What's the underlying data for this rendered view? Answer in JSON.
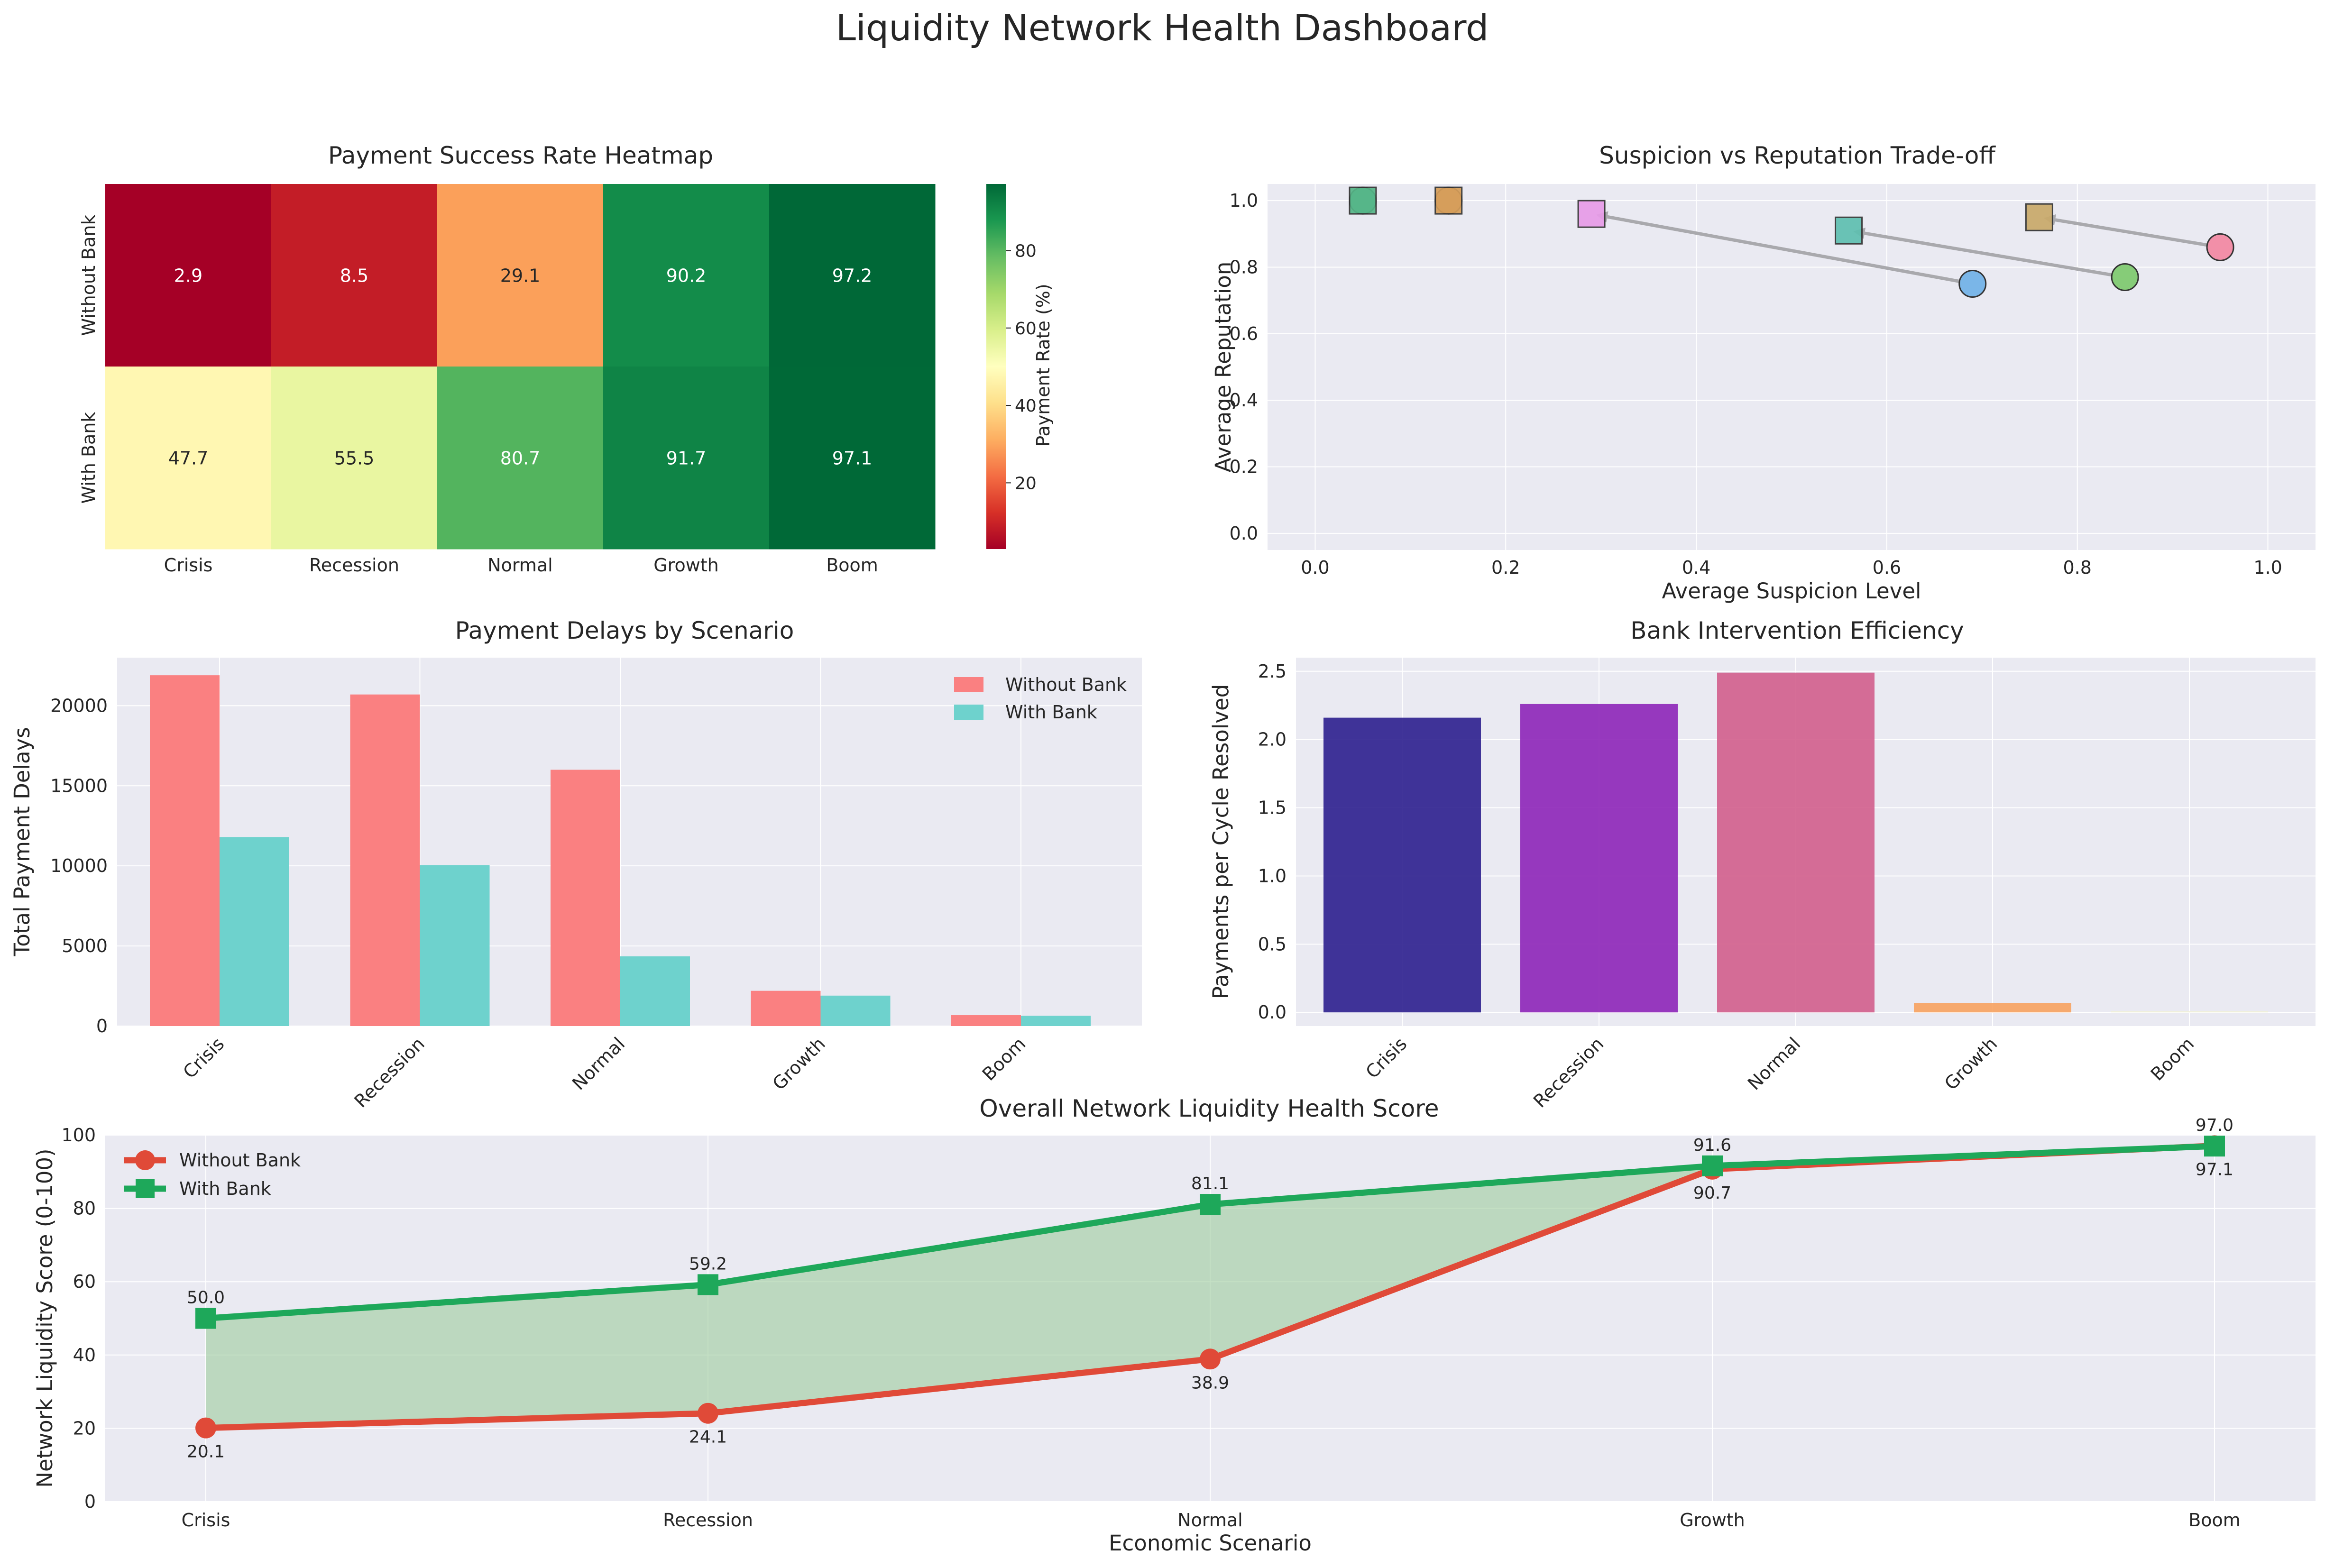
{
  "title": "Liquidity Network Health Dashboard",
  "chart_data": [
    {
      "type": "heatmap",
      "title": "Payment Success Rate Heatmap",
      "columns": [
        "Crisis",
        "Recession",
        "Normal",
        "Growth",
        "Boom"
      ],
      "rows": [
        "Without Bank",
        "With Bank"
      ],
      "values": [
        [
          2.9,
          8.5,
          29.1,
          90.2,
          97.2
        ],
        [
          47.7,
          55.5,
          80.7,
          91.7,
          97.1
        ]
      ],
      "colorbar_label": "Payment Rate (%)",
      "colorbar_ticks": [
        "20",
        "40",
        "60",
        "80"
      ],
      "vmin": 2.9,
      "vmax": 97.2,
      "colormap": "RdYlGn"
    },
    {
      "type": "scatter",
      "title": "Suspicion vs Reputation Trade-off",
      "xlabel": "Average Suspicion Level",
      "ylabel": "Average Reputation",
      "xlim": [
        -0.05,
        1.05
      ],
      "ylim": [
        -0.05,
        1.05
      ],
      "xticks": [
        "0.0",
        "0.2",
        "0.4",
        "0.6",
        "0.8",
        "1.0"
      ],
      "yticks": [
        "0.0",
        "0.2",
        "0.4",
        "0.6",
        "0.8",
        "1.0"
      ],
      "grid": true,
      "series": [
        {
          "marker": "circle",
          "points": [
            {
              "x": 0.95,
              "y": 0.86,
              "color": "#f28fa8"
            },
            {
              "x": 0.85,
              "y": 0.77,
              "color": "#86cc78"
            },
            {
              "x": 0.69,
              "y": 0.75,
              "color": "#7ab6e8"
            },
            {
              "x": 0.14,
              "y": 1.0,
              "color": "#d8a17b"
            },
            {
              "x": 0.05,
              "y": 1.0,
              "color": "#6ec7a3"
            }
          ]
        },
        {
          "marker": "square",
          "points": [
            {
              "x": 0.76,
              "y": 0.95,
              "color": "#c9a96a"
            },
            {
              "x": 0.56,
              "y": 0.91,
              "color": "#5fbfb0"
            },
            {
              "x": 0.29,
              "y": 0.96,
              "color": "#e79be8"
            },
            {
              "x": 0.14,
              "y": 1.0,
              "color": "#d69e59"
            },
            {
              "x": 0.05,
              "y": 1.0,
              "color": "#55b587"
            }
          ]
        }
      ]
    },
    {
      "type": "bar",
      "title": "Payment Delays by Scenario",
      "ylabel": "Total Payment Delays",
      "categories": [
        "Crisis",
        "Recession",
        "Normal",
        "Growth",
        "Boom"
      ],
      "ylim": [
        0,
        23000
      ],
      "yticks": [
        "0",
        "5000",
        "10000",
        "15000",
        "20000"
      ],
      "legend": "top-right",
      "series": [
        {
          "name": "Without Bank",
          "color": "#fa8081",
          "values": [
            21900,
            20700,
            16000,
            2200,
            680
          ]
        },
        {
          "name": "With Bank",
          "color": "#6ed2cd",
          "values": [
            11800,
            10050,
            4350,
            1900,
            640
          ]
        }
      ]
    },
    {
      "type": "bar",
      "title": "Bank Intervention Efficiency",
      "ylabel": "Payments per Cycle Resolved",
      "categories": [
        "Crisis",
        "Recession",
        "Normal",
        "Growth",
        "Boom"
      ],
      "values": [
        2.16,
        2.26,
        2.49,
        0.07,
        0.01
      ],
      "colors": [
        "#2c1f8e",
        "#8d25b8",
        "#d15e8c",
        "#f7a25f",
        "#f0f0d8"
      ],
      "ylim": [
        -0.1,
        2.6
      ],
      "yticks": [
        "0.0",
        "0.5",
        "1.0",
        "1.5",
        "2.0",
        "2.5"
      ]
    },
    {
      "type": "line",
      "title": "Overall Network Liquidity Health Score",
      "xlabel": "Economic Scenario",
      "ylabel": "Network Liquidity Score (0-100)",
      "categories": [
        "Crisis",
        "Recession",
        "Normal",
        "Growth",
        "Boom"
      ],
      "ylim": [
        0,
        100
      ],
      "yticks": [
        "0",
        "20",
        "40",
        "60",
        "80",
        "100"
      ],
      "legend": "top-left",
      "series": [
        {
          "name": "Without Bank",
          "color": "#e04a38",
          "marker": "circle",
          "values": [
            20.1,
            24.1,
            38.9,
            90.7,
            97.1
          ]
        },
        {
          "name": "With Bank",
          "color": "#1ea85a",
          "marker": "square",
          "values": [
            50.0,
            59.2,
            81.1,
            91.6,
            97.0
          ]
        }
      ],
      "fill_between_color": "#9ccc9c",
      "grid": true
    }
  ]
}
